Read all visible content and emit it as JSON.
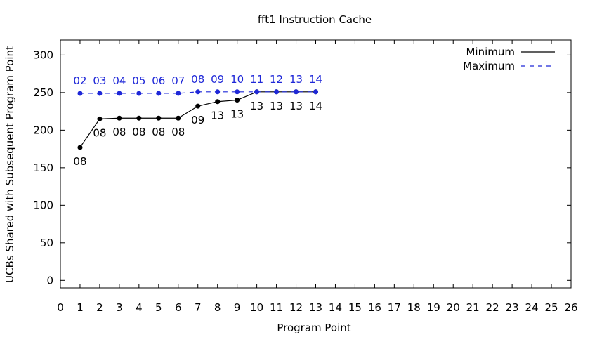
{
  "chart_data": {
    "type": "line",
    "title": "fft1 Instruction Cache",
    "xlabel": "Program Point",
    "ylabel": "UCBs Shared with Subsequent Program Point",
    "xlim": [
      0,
      26
    ],
    "ylim": [
      -10,
      320
    ],
    "xticks": [
      "0",
      "1",
      "2",
      "3",
      "4",
      "5",
      "6",
      "7",
      "8",
      "9",
      "10",
      "11",
      "12",
      "13",
      "14",
      "15",
      "16",
      "17",
      "18",
      "19",
      "20",
      "21",
      "22",
      "23",
      "24",
      "25",
      "26"
    ],
    "yticks": [
      "0",
      "50",
      "100",
      "150",
      "200",
      "250",
      "300"
    ],
    "grid": false,
    "legend_position": "top-right",
    "series": [
      {
        "name": "Minimum",
        "color": "#000000",
        "dash": "solid",
        "x": [
          1,
          2,
          3,
          4,
          5,
          6,
          7,
          8,
          9,
          10,
          11,
          12,
          13
        ],
        "y": [
          177,
          215,
          216,
          216,
          216,
          216,
          232,
          238,
          240,
          251,
          251,
          251,
          251
        ],
        "labels": [
          "08",
          "08",
          "08",
          "08",
          "08",
          "08",
          "09",
          "13",
          "13",
          "13",
          "13",
          "13",
          "14"
        ]
      },
      {
        "name": "Maximum",
        "color": "#1f28d8",
        "dash": "dashed",
        "x": [
          1,
          2,
          3,
          4,
          5,
          6,
          7,
          8,
          9,
          10,
          11,
          12,
          13
        ],
        "y": [
          249,
          249,
          249,
          249,
          249,
          249,
          251,
          251,
          251,
          251,
          251,
          251,
          251
        ],
        "labels": [
          "02",
          "03",
          "04",
          "05",
          "06",
          "07",
          "08",
          "09",
          "10",
          "11",
          "12",
          "13",
          "14"
        ]
      }
    ]
  }
}
